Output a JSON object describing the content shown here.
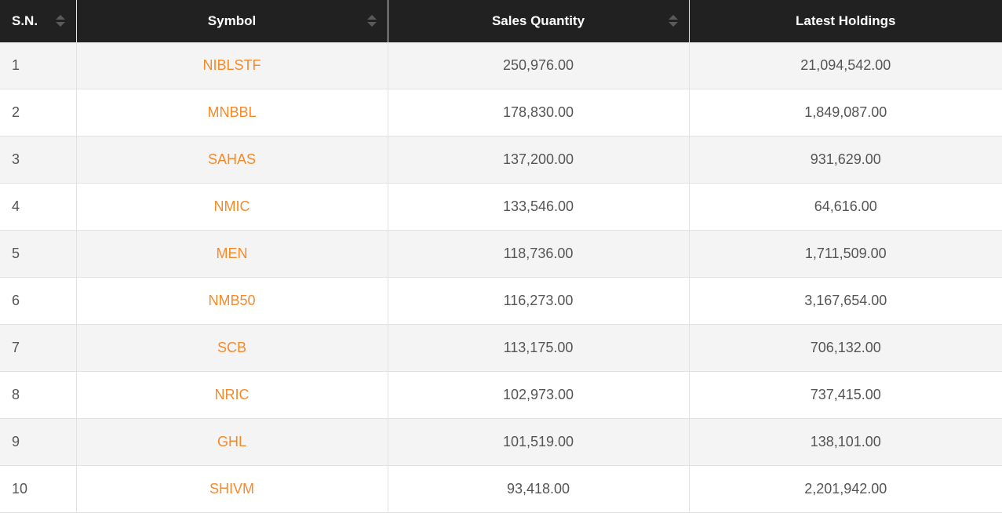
{
  "table": {
    "headers": [
      "S.N.",
      "Symbol",
      "Sales Quantity",
      "Latest Holdings"
    ],
    "accent_color": "#f58a2a",
    "rows": [
      {
        "sn": "1",
        "symbol": "NIBLSTF",
        "sales_quantity": "250,976.00",
        "latest_holdings": "21,094,542.00"
      },
      {
        "sn": "2",
        "symbol": "MNBBL",
        "sales_quantity": "178,830.00",
        "latest_holdings": "1,849,087.00"
      },
      {
        "sn": "3",
        "symbol": "SAHAS",
        "sales_quantity": "137,200.00",
        "latest_holdings": "931,629.00"
      },
      {
        "sn": "4",
        "symbol": "NMIC",
        "sales_quantity": "133,546.00",
        "latest_holdings": "64,616.00"
      },
      {
        "sn": "5",
        "symbol": "MEN",
        "sales_quantity": "118,736.00",
        "latest_holdings": "1,711,509.00"
      },
      {
        "sn": "6",
        "symbol": "NMB50",
        "sales_quantity": "116,273.00",
        "latest_holdings": "3,167,654.00"
      },
      {
        "sn": "7",
        "symbol": "SCB",
        "sales_quantity": "113,175.00",
        "latest_holdings": "706,132.00"
      },
      {
        "sn": "8",
        "symbol": "NRIC",
        "sales_quantity": "102,973.00",
        "latest_holdings": "737,415.00"
      },
      {
        "sn": "9",
        "symbol": "GHL",
        "sales_quantity": "101,519.00",
        "latest_holdings": "138,101.00"
      },
      {
        "sn": "10",
        "symbol": "SHIVM",
        "sales_quantity": "93,418.00",
        "latest_holdings": "2,201,942.00"
      }
    ]
  }
}
